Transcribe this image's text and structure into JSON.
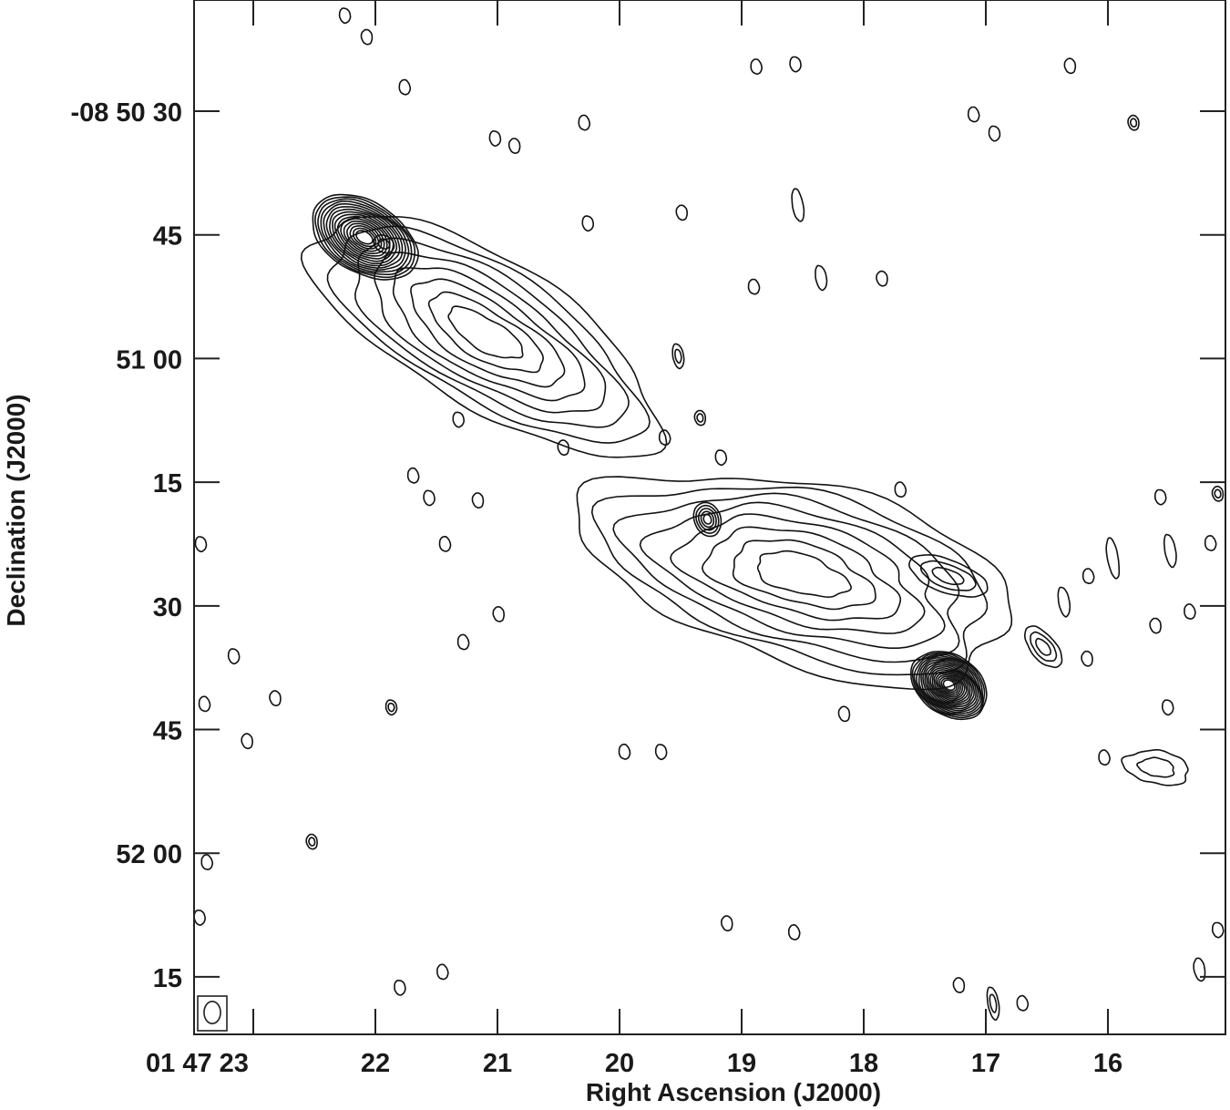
{
  "chart_data": {
    "type": "contour",
    "xlabel": "Right Ascension (J2000)",
    "ylabel": "Declination (J2000)",
    "x_ticks": [
      {
        "ra_s": 23,
        "label": "01 47 23"
      },
      {
        "ra_s": 22,
        "label": "22"
      },
      {
        "ra_s": 21,
        "label": "21"
      },
      {
        "ra_s": 20,
        "label": "20"
      },
      {
        "ra_s": 19,
        "label": "19"
      },
      {
        "ra_s": 18,
        "label": "18"
      },
      {
        "ra_s": 17,
        "label": "17"
      },
      {
        "ra_s": 16,
        "label": "16"
      }
    ],
    "y_ticks": [
      {
        "dec": "-08 50 30",
        "label": "-08 50 30"
      },
      {
        "dec": "-08 50 45",
        "label": "45"
      },
      {
        "dec": "-08 51 00",
        "label": "51 00"
      },
      {
        "dec": "-08 51 15",
        "label": "15"
      },
      {
        "dec": "-08 51 30",
        "label": "30"
      },
      {
        "dec": "-08 51 45",
        "label": "45"
      },
      {
        "dec": "-08 52 00",
        "label": "52 00"
      },
      {
        "dec": "-08 52 15",
        "label": "15"
      }
    ],
    "ra_range_s": [
      23.49,
      15.04
    ],
    "dec_range": [
      "-08 50 16.5",
      "-08 52 22"
    ],
    "grid": false,
    "contour_color": "#111111",
    "beam": {
      "major_arcsec": 2.7,
      "minor_arcsec": 2.0,
      "location": "bottom-left"
    },
    "components": [
      {
        "name": "north-lobe",
        "ra_s": 21.1,
        "dec": "-08 50 57",
        "major_arcsec": 24,
        "minor_arcsec": 9,
        "pa_deg": 59,
        "levels": 8,
        "roughness": 0.1
      },
      {
        "name": "north-hotspot",
        "ra_s": 22.09,
        "dec": "-08 50 45.3",
        "major_arcsec": 7,
        "minor_arcsec": 4.3,
        "pa_deg": 59,
        "levels": 16,
        "roughness": 0.03
      },
      {
        "name": "north-peak-2",
        "ra_s": 21.93,
        "dec": "-08 50 46.1",
        "major_arcsec": 1.3,
        "minor_arcsec": 1.0,
        "pa_deg": 60,
        "levels": 2,
        "roughness": 0.0
      },
      {
        "name": "south-lobe",
        "ra_s": 18.51,
        "dec": "-08 51 26.2",
        "major_arcsec": 27,
        "minor_arcsec": 11,
        "pa_deg": 75,
        "levels": 8,
        "roughness": 0.14
      },
      {
        "name": "south-hotspot",
        "ra_s": 17.3,
        "dec": "-08 51 39.6",
        "major_arcsec": 5,
        "minor_arcsec": 3.6,
        "pa_deg": 55,
        "levels": 18,
        "roughness": 0.03
      },
      {
        "name": "compact-source",
        "ra_s": 19.28,
        "dec": "-08 51 19.5",
        "major_arcsec": 2.1,
        "minor_arcsec": 1.6,
        "pa_deg": 20,
        "levels": 5,
        "roughness": 0.02
      },
      {
        "name": "west-blob",
        "ra_s": 17.31,
        "dec": "-08 51 26.4",
        "major_arcsec": 5,
        "minor_arcsec": 2,
        "pa_deg": 70,
        "levels": 3,
        "roughness": 0.05
      },
      {
        "name": "blob-sw",
        "ra_s": 16.53,
        "dec": "-08 51 35",
        "major_arcsec": 3,
        "minor_arcsec": 1.5,
        "pa_deg": 40,
        "levels": 3,
        "roughness": 0.05
      },
      {
        "name": "blob-far-sw",
        "ra_s": 15.6,
        "dec": "-08 51 49.6",
        "major_arcsec": 4,
        "minor_arcsec": 2,
        "pa_deg": 80,
        "levels": 2,
        "roughness": 0.12
      }
    ],
    "noise_peaks": [
      {
        "ra_s": 22.25,
        "dec": "-08 50 18.4"
      },
      {
        "ra_s": 22.07,
        "dec": "-08 50 21.0"
      },
      {
        "ra_s": 21.76,
        "dec": "-08 50 27.1"
      },
      {
        "ra_s": 21.02,
        "dec": "-08 50 33.3"
      },
      {
        "ra_s": 20.86,
        "dec": "-08 50 34.2"
      },
      {
        "ra_s": 20.29,
        "dec": "-08 50 31.4"
      },
      {
        "ra_s": 20.26,
        "dec": "-08 50 43.6"
      },
      {
        "ra_s": 19.49,
        "dec": "-08 50 42.3"
      },
      {
        "ra_s": 18.88,
        "dec": "-08 50 24.6"
      },
      {
        "ra_s": 18.56,
        "dec": "-08 50 24.3"
      },
      {
        "ra_s": 16.31,
        "dec": "-08 50 24.5"
      },
      {
        "ra_s": 17.1,
        "dec": "-08 50 30.4"
      },
      {
        "ra_s": 16.93,
        "dec": "-08 50 32.7"
      },
      {
        "ra_s": 15.79,
        "dec": "-08 50 31.4",
        "levels": 2
      },
      {
        "ra_s": 18.54,
        "dec": "-08 50 41.4",
        "major_arcsec": 2
      },
      {
        "ra_s": 18.35,
        "dec": "-08 50 50.2",
        "major_arcsec": 1.5
      },
      {
        "ra_s": 17.85,
        "dec": "-08 50 50.3"
      },
      {
        "ra_s": 18.9,
        "dec": "-08 50 51.3"
      },
      {
        "ra_s": 19.52,
        "dec": "-08 50 59.7",
        "major_arcsec": 1.5,
        "levels": 2
      },
      {
        "ra_s": 19.34,
        "dec": "-08 51 07.2",
        "levels": 2
      },
      {
        "ra_s": 19.63,
        "dec": "-08 51 09.6"
      },
      {
        "ra_s": 21.32,
        "dec": "-08 51 07.4"
      },
      {
        "ra_s": 20.46,
        "dec": "-08 51 10.8"
      },
      {
        "ra_s": 21.69,
        "dec": "-08 51 14.2"
      },
      {
        "ra_s": 21.56,
        "dec": "-08 51 16.9"
      },
      {
        "ra_s": 21.16,
        "dec": "-08 51 17.2"
      },
      {
        "ra_s": 21.43,
        "dec": "-08 51 22.5"
      },
      {
        "ra_s": 23.43,
        "dec": "-08 51 22.5"
      },
      {
        "ra_s": 20.99,
        "dec": "-08 51 31.0"
      },
      {
        "ra_s": 21.28,
        "dec": "-08 51 34.4"
      },
      {
        "ra_s": 23.16,
        "dec": "-08 51 36.1"
      },
      {
        "ra_s": 22.82,
        "dec": "-08 51 41.2"
      },
      {
        "ra_s": 23.4,
        "dec": "-08 51 41.9"
      },
      {
        "ra_s": 21.87,
        "dec": "-08 51 42.3",
        "levels": 2
      },
      {
        "ra_s": 23.05,
        "dec": "-08 51 46.4"
      },
      {
        "ra_s": 19.96,
        "dec": "-08 51 47.7"
      },
      {
        "ra_s": 19.66,
        "dec": "-08 51 47.7"
      },
      {
        "ra_s": 18.16,
        "dec": "-08 51 43.1"
      },
      {
        "ra_s": 16.03,
        "dec": "-08 51 48.4"
      },
      {
        "ra_s": 15.51,
        "dec": "-08 51 42.3"
      },
      {
        "ra_s": 15.61,
        "dec": "-08 51 32.4"
      },
      {
        "ra_s": 15.33,
        "dec": "-08 51 30.7"
      },
      {
        "ra_s": 15.57,
        "dec": "-08 51 16.8"
      },
      {
        "ra_s": 15.1,
        "dec": "-08 51 16.4",
        "levels": 2
      },
      {
        "ra_s": 15.16,
        "dec": "-08 51 22.4"
      },
      {
        "ra_s": 15.49,
        "dec": "-08 51 23.3",
        "major_arcsec": 2
      },
      {
        "ra_s": 15.96,
        "dec": "-08 51 24.2",
        "major_arcsec": 2.5
      },
      {
        "ra_s": 16.16,
        "dec": "-08 51 26.4"
      },
      {
        "ra_s": 16.36,
        "dec": "-08 51 29.5",
        "major_arcsec": 1.8
      },
      {
        "ra_s": 16.17,
        "dec": "-08 51 36.4"
      },
      {
        "ra_s": 17.7,
        "dec": "-08 51 15.9"
      },
      {
        "ra_s": 19.17,
        "dec": "-08 51 12.0"
      },
      {
        "ra_s": 22.52,
        "dec": "-08 51 58.6",
        "levels": 2
      },
      {
        "ra_s": 23.38,
        "dec": "-08 52 01.1"
      },
      {
        "ra_s": 23.44,
        "dec": "-08 52 07.8"
      },
      {
        "ra_s": 19.12,
        "dec": "-08 52 08.5"
      },
      {
        "ra_s": 18.57,
        "dec": "-08 52 09.6"
      },
      {
        "ra_s": 15.1,
        "dec": "-08 52 09.3"
      },
      {
        "ra_s": 15.25,
        "dec": "-08 52 14.1",
        "major_arcsec": 1.4
      },
      {
        "ra_s": 21.45,
        "dec": "-08 52 14.4"
      },
      {
        "ra_s": 21.8,
        "dec": "-08 52 16.3"
      },
      {
        "ra_s": 17.22,
        "dec": "-08 52 16.0"
      },
      {
        "ra_s": 16.7,
        "dec": "-08 52 18.2"
      },
      {
        "ra_s": 16.94,
        "dec": "-08 52 18.2",
        "major_arcsec": 2,
        "levels": 2
      }
    ]
  }
}
